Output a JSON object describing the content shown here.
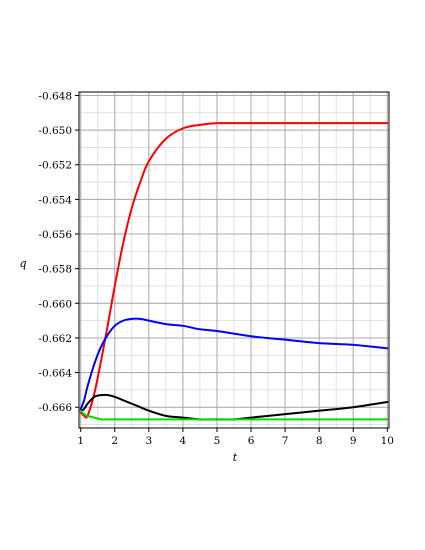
{
  "chart_data": {
    "type": "line",
    "xlabel": "t",
    "ylabel": "q",
    "xlim": [
      0.95,
      10.05
    ],
    "ylim": [
      -0.6672,
      -0.6478
    ],
    "x_ticks": [
      1,
      2,
      3,
      4,
      5,
      6,
      7,
      8,
      9,
      10
    ],
    "x_tick_labels": [
      "1",
      "2",
      "3",
      "4",
      "5",
      "6",
      "7",
      "8",
      "9",
      "10"
    ],
    "y_ticks": [
      -0.648,
      -0.65,
      -0.652,
      -0.654,
      -0.656,
      -0.658,
      -0.66,
      -0.662,
      -0.664,
      -0.666
    ],
    "y_tick_labels": [
      "-0.648",
      "-0.650",
      "-0.652",
      "-0.654",
      "-0.656",
      "-0.658",
      "-0.660",
      "-0.662",
      "-0.664",
      "-0.666"
    ],
    "x_minor_step": 0.5,
    "y_minor_step": 0.001,
    "grid": true,
    "legend": "none",
    "colors": {
      "grid_major": "#a9a9a9",
      "grid_minor": "#d9d9d9",
      "axis": "#000000"
    },
    "series": [
      {
        "color": "#ff0000",
        "x": [
          1,
          1.1,
          1.2,
          1.4,
          1.6,
          1.8,
          2,
          2.25,
          2.5,
          2.75,
          3,
          3.5,
          4,
          4.5,
          5,
          5.5,
          6,
          7,
          8,
          9,
          10
        ],
        "y": [
          -0.6663,
          -0.6665,
          -0.6665,
          -0.6652,
          -0.6633,
          -0.6612,
          -0.659,
          -0.6565,
          -0.6545,
          -0.653,
          -0.6518,
          -0.6505,
          -0.6499,
          -0.6497,
          -0.6496,
          -0.6496,
          -0.6496,
          -0.6496,
          -0.6496,
          -0.6496,
          -0.6496
        ]
      },
      {
        "color": "#0000ff",
        "x": [
          1,
          1.1,
          1.2,
          1.4,
          1.6,
          1.8,
          2,
          2.25,
          2.5,
          2.75,
          3,
          3.5,
          4,
          4.5,
          5,
          6,
          7,
          8,
          9,
          10
        ],
        "y": [
          -0.6661,
          -0.6656,
          -0.6648,
          -0.6635,
          -0.6625,
          -0.6618,
          -0.6613,
          -0.661,
          -0.6609,
          -0.6609,
          -0.661,
          -0.6612,
          -0.6613,
          -0.6615,
          -0.6616,
          -0.6619,
          -0.6621,
          -0.6623,
          -0.6624,
          -0.6626
        ]
      },
      {
        "color": "#000000",
        "x": [
          1,
          1.1,
          1.2,
          1.4,
          1.6,
          1.8,
          2,
          2.25,
          2.5,
          2.75,
          3,
          3.5,
          4,
          4.5,
          5,
          5.5,
          6,
          7,
          8,
          9,
          10
        ],
        "y": [
          -0.6662,
          -0.6661,
          -0.6658,
          -0.6654,
          -0.6653,
          -0.6653,
          -0.6654,
          -0.6656,
          -0.6658,
          -0.666,
          -0.6662,
          -0.6665,
          -0.6666,
          -0.6667,
          -0.6667,
          -0.6667,
          -0.6666,
          -0.6664,
          -0.6662,
          -0.666,
          -0.6657
        ]
      },
      {
        "color": "#00dd00",
        "x": [
          1,
          1.1,
          1.2,
          1.4,
          1.6,
          1.8,
          2,
          2.5,
          3,
          4,
          5,
          6,
          7,
          8,
          9,
          10
        ],
        "y": [
          -0.6662,
          -0.6664,
          -0.6665,
          -0.6666,
          -0.6667,
          -0.6667,
          -0.6667,
          -0.6667,
          -0.6667,
          -0.6667,
          -0.6667,
          -0.6667,
          -0.6667,
          -0.6667,
          -0.6667,
          -0.6667
        ]
      }
    ]
  }
}
